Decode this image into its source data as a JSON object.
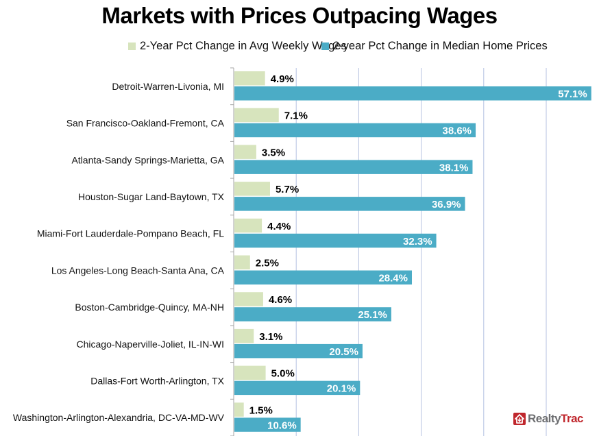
{
  "chart_data": {
    "type": "bar",
    "orientation": "horizontal",
    "title": "Markets with Prices Outpacing Wages",
    "xlabel": "",
    "ylabel": "",
    "xlim": [
      0,
      57.1
    ],
    "grid": true,
    "gridlines_at": [
      10,
      20,
      30,
      40,
      50
    ],
    "legend_position": "top",
    "categories": [
      "Detroit-Warren-Livonia, MI",
      "San Francisco-Oakland-Fremont, CA",
      "Atlanta-Sandy Springs-Marietta, GA",
      "Houston-Sugar Land-Baytown, TX",
      "Miami-Fort Lauderdale-Pompano Beach, FL",
      "Los Angeles-Long Beach-Santa Ana, CA",
      "Boston-Cambridge-Quincy, MA-NH",
      "Chicago-Naperville-Joliet, IL-IN-WI",
      "Dallas-Fort Worth-Arlington, TX",
      "Washington-Arlington-Alexandria, DC-VA-MD-WV"
    ],
    "series": [
      {
        "name": "2-Year Pct Change in Avg Weekly Wages",
        "color": "#d7e4bd",
        "label_color": "#000000",
        "values": [
          4.9,
          7.1,
          3.5,
          5.7,
          4.4,
          2.5,
          4.6,
          3.1,
          5.0,
          1.5
        ],
        "labels": [
          "4.9%",
          "7.1%",
          "3.5%",
          "5.7%",
          "4.4%",
          "2.5%",
          "4.6%",
          "3.1%",
          "5.0%",
          "1.5%"
        ]
      },
      {
        "name": "2-year Pct Change in Median Home Prices",
        "color": "#4bacc6",
        "label_color": "#ffffff",
        "values": [
          57.1,
          38.6,
          38.1,
          36.9,
          32.3,
          28.4,
          25.1,
          20.5,
          20.1,
          10.6
        ],
        "labels": [
          "57.1%",
          "38.6%",
          "38.1%",
          "36.9%",
          "32.3%",
          "28.4%",
          "25.1%",
          "20.5%",
          "20.1%",
          "10.6%"
        ]
      }
    ]
  },
  "colors": {
    "gridline": "#b4c2e0",
    "axis": "#a6a6a6"
  },
  "logo": {
    "icon": "house-icon",
    "text_part1": "Realty",
    "text_part2": "Trac"
  }
}
